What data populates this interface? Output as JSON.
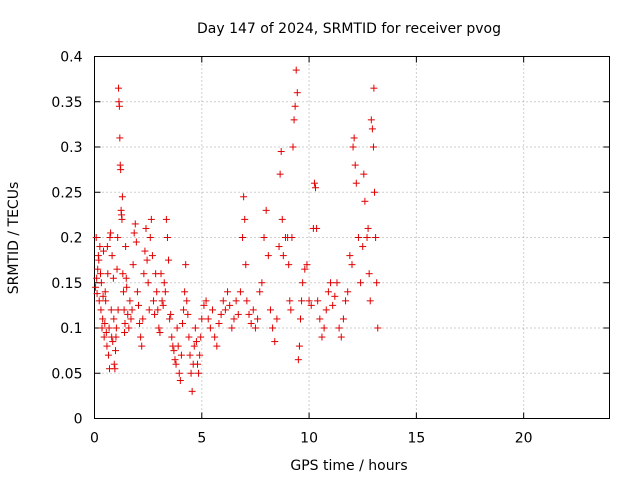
{
  "chart_data": {
    "type": "scatter",
    "title": "Day 147 of 2024, SRMTID for receiver pvog",
    "xlabel": "GPS time / hours",
    "ylabel": "SRMTID / TECUs",
    "xlim": [
      0,
      24
    ],
    "ylim": [
      0,
      0.4
    ],
    "xticks": [
      0,
      5,
      10,
      15,
      20
    ],
    "yticks": [
      0,
      0.05,
      0.1,
      0.15,
      0.2,
      0.25,
      0.3,
      0.35,
      0.4
    ],
    "xtick_labels": [
      "0",
      "5",
      "10",
      "15",
      "20"
    ],
    "ytick_labels": [
      "0",
      "0.05",
      "0.1",
      "0.15",
      "0.2",
      "0.25",
      "0.3",
      "0.35",
      "0.4"
    ],
    "grid": true,
    "marker": "+",
    "color": "#e00000",
    "series": [
      {
        "name": "SRMTID",
        "points": [
          [
            0.05,
            0.145
          ],
          [
            0.08,
            0.2
          ],
          [
            0.1,
            0.155
          ],
          [
            0.12,
            0.138
          ],
          [
            0.15,
            0.165
          ],
          [
            0.18,
            0.18
          ],
          [
            0.2,
            0.175
          ],
          [
            0.22,
            0.13
          ],
          [
            0.25,
            0.19
          ],
          [
            0.28,
            0.16
          ],
          [
            0.3,
            0.12
          ],
          [
            0.32,
            0.15
          ],
          [
            0.35,
            0.1
          ],
          [
            0.38,
            0.11
          ],
          [
            0.4,
            0.135
          ],
          [
            0.42,
            0.185
          ],
          [
            0.45,
            0.09
          ],
          [
            0.48,
            0.105
          ],
          [
            0.5,
            0.14
          ],
          [
            0.52,
            0.13
          ],
          [
            0.55,
            0.095
          ],
          [
            0.58,
            0.08
          ],
          [
            0.6,
            0.19
          ],
          [
            0.62,
            0.16
          ],
          [
            0.65,
            0.07
          ],
          [
            0.68,
            0.1
          ],
          [
            0.7,
            0.055
          ],
          [
            0.72,
            0.2
          ],
          [
            0.75,
            0.205
          ],
          [
            0.78,
            0.12
          ],
          [
            0.8,
            0.09
          ],
          [
            0.82,
            0.18
          ],
          [
            0.85,
            0.085
          ],
          [
            0.88,
            0.155
          ],
          [
            0.9,
            0.11
          ],
          [
            0.92,
            0.06
          ],
          [
            0.95,
            0.055
          ],
          [
            0.98,
            0.075
          ],
          [
            1.0,
            0.09
          ],
          [
            1.02,
            0.1
          ],
          [
            1.05,
            0.165
          ],
          [
            1.08,
            0.2
          ],
          [
            1.1,
            0.12
          ],
          [
            1.12,
            0.365
          ],
          [
            1.14,
            0.35
          ],
          [
            1.16,
            0.345
          ],
          [
            1.18,
            0.31
          ],
          [
            1.2,
            0.28
          ],
          [
            1.22,
            0.275
          ],
          [
            1.24,
            0.23
          ],
          [
            1.26,
            0.225
          ],
          [
            1.28,
            0.22
          ],
          [
            1.3,
            0.245
          ],
          [
            1.32,
            0.16
          ],
          [
            1.35,
            0.14
          ],
          [
            1.38,
            0.12
          ],
          [
            1.4,
            0.095
          ],
          [
            1.42,
            0.105
          ],
          [
            1.45,
            0.19
          ],
          [
            1.48,
            0.155
          ],
          [
            1.5,
            0.145
          ],
          [
            1.55,
            0.115
          ],
          [
            1.6,
            0.1
          ],
          [
            1.65,
            0.13
          ],
          [
            1.7,
            0.11
          ],
          [
            1.75,
            0.12
          ],
          [
            1.8,
            0.17
          ],
          [
            1.85,
            0.205
          ],
          [
            1.9,
            0.215
          ],
          [
            1.95,
            0.195
          ],
          [
            2.0,
            0.14
          ],
          [
            2.05,
            0.125
          ],
          [
            2.1,
            0.105
          ],
          [
            2.15,
            0.09
          ],
          [
            2.2,
            0.08
          ],
          [
            2.25,
            0.11
          ],
          [
            2.3,
            0.16
          ],
          [
            2.35,
            0.185
          ],
          [
            2.4,
            0.21
          ],
          [
            2.45,
            0.175
          ],
          [
            2.5,
            0.15
          ],
          [
            2.55,
            0.12
          ],
          [
            2.6,
            0.2
          ],
          [
            2.65,
            0.22
          ],
          [
            2.7,
            0.18
          ],
          [
            2.75,
            0.13
          ],
          [
            2.8,
            0.115
          ],
          [
            2.85,
            0.16
          ],
          [
            2.9,
            0.14
          ],
          [
            2.95,
            0.12
          ],
          [
            3.0,
            0.1
          ],
          [
            3.05,
            0.095
          ],
          [
            3.1,
            0.16
          ],
          [
            3.15,
            0.13
          ],
          [
            3.2,
            0.125
          ],
          [
            3.25,
            0.15
          ],
          [
            3.3,
            0.14
          ],
          [
            3.35,
            0.22
          ],
          [
            3.4,
            0.2
          ],
          [
            3.45,
            0.175
          ],
          [
            3.5,
            0.11
          ],
          [
            3.55,
            0.115
          ],
          [
            3.6,
            0.09
          ],
          [
            3.65,
            0.08
          ],
          [
            3.7,
            0.075
          ],
          [
            3.75,
            0.065
          ],
          [
            3.8,
            0.06
          ],
          [
            3.85,
            0.1
          ],
          [
            3.9,
            0.08
          ],
          [
            3.95,
            0.05
          ],
          [
            4.0,
            0.042
          ],
          [
            4.05,
            0.07
          ],
          [
            4.1,
            0.105
          ],
          [
            4.15,
            0.12
          ],
          [
            4.2,
            0.14
          ],
          [
            4.25,
            0.17
          ],
          [
            4.3,
            0.13
          ],
          [
            4.35,
            0.115
          ],
          [
            4.4,
            0.09
          ],
          [
            4.45,
            0.07
          ],
          [
            4.5,
            0.05
          ],
          [
            4.55,
            0.03
          ],
          [
            4.6,
            0.06
          ],
          [
            4.65,
            0.08
          ],
          [
            4.7,
            0.1
          ],
          [
            4.75,
            0.085
          ],
          [
            4.8,
            0.06
          ],
          [
            4.85,
            0.05
          ],
          [
            4.9,
            0.07
          ],
          [
            4.95,
            0.09
          ],
          [
            5.0,
            0.11
          ],
          [
            5.1,
            0.125
          ],
          [
            5.2,
            0.13
          ],
          [
            5.3,
            0.11
          ],
          [
            5.4,
            0.1
          ],
          [
            5.5,
            0.12
          ],
          [
            5.6,
            0.09
          ],
          [
            5.7,
            0.08
          ],
          [
            5.8,
            0.105
          ],
          [
            5.9,
            0.115
          ],
          [
            6.0,
            0.13
          ],
          [
            6.1,
            0.12
          ],
          [
            6.2,
            0.14
          ],
          [
            6.3,
            0.125
          ],
          [
            6.4,
            0.1
          ],
          [
            6.5,
            0.11
          ],
          [
            6.6,
            0.13
          ],
          [
            6.7,
            0.115
          ],
          [
            6.8,
            0.14
          ],
          [
            6.9,
            0.2
          ],
          [
            6.95,
            0.245
          ],
          [
            7.0,
            0.22
          ],
          [
            7.05,
            0.17
          ],
          [
            7.1,
            0.13
          ],
          [
            7.2,
            0.115
          ],
          [
            7.3,
            0.105
          ],
          [
            7.4,
            0.12
          ],
          [
            7.5,
            0.1
          ],
          [
            7.6,
            0.11
          ],
          [
            7.7,
            0.14
          ],
          [
            7.8,
            0.15
          ],
          [
            7.9,
            0.2
          ],
          [
            8.0,
            0.23
          ],
          [
            8.1,
            0.18
          ],
          [
            8.2,
            0.12
          ],
          [
            8.3,
            0.1
          ],
          [
            8.4,
            0.085
          ],
          [
            8.5,
            0.11
          ],
          [
            8.6,
            0.19
          ],
          [
            8.65,
            0.27
          ],
          [
            8.7,
            0.295
          ],
          [
            8.75,
            0.22
          ],
          [
            8.8,
            0.18
          ],
          [
            8.9,
            0.2
          ],
          [
            9.0,
            0.2
          ],
          [
            9.05,
            0.17
          ],
          [
            9.1,
            0.13
          ],
          [
            9.15,
            0.12
          ],
          [
            9.2,
            0.2
          ],
          [
            9.25,
            0.3
          ],
          [
            9.3,
            0.33
          ],
          [
            9.35,
            0.345
          ],
          [
            9.4,
            0.385
          ],
          [
            9.45,
            0.36
          ],
          [
            9.5,
            0.065
          ],
          [
            9.55,
            0.08
          ],
          [
            9.6,
            0.11
          ],
          [
            9.65,
            0.13
          ],
          [
            9.7,
            0.15
          ],
          [
            9.8,
            0.165
          ],
          [
            9.9,
            0.17
          ],
          [
            10.0,
            0.13
          ],
          [
            10.1,
            0.125
          ],
          [
            10.2,
            0.21
          ],
          [
            10.25,
            0.26
          ],
          [
            10.3,
            0.255
          ],
          [
            10.35,
            0.21
          ],
          [
            10.4,
            0.13
          ],
          [
            10.5,
            0.11
          ],
          [
            10.6,
            0.09
          ],
          [
            10.7,
            0.1
          ],
          [
            10.8,
            0.12
          ],
          [
            10.9,
            0.14
          ],
          [
            11.0,
            0.15
          ],
          [
            11.1,
            0.125
          ],
          [
            11.2,
            0.135
          ],
          [
            11.3,
            0.15
          ],
          [
            11.4,
            0.1
          ],
          [
            11.5,
            0.09
          ],
          [
            11.6,
            0.11
          ],
          [
            11.7,
            0.13
          ],
          [
            11.8,
            0.14
          ],
          [
            11.9,
            0.18
          ],
          [
            12.0,
            0.17
          ],
          [
            12.05,
            0.3
          ],
          [
            12.1,
            0.31
          ],
          [
            12.15,
            0.28
          ],
          [
            12.2,
            0.26
          ],
          [
            12.3,
            0.2
          ],
          [
            12.4,
            0.15
          ],
          [
            12.5,
            0.19
          ],
          [
            12.55,
            0.27
          ],
          [
            12.6,
            0.24
          ],
          [
            12.7,
            0.2
          ],
          [
            12.75,
            0.21
          ],
          [
            12.8,
            0.16
          ],
          [
            12.85,
            0.13
          ],
          [
            12.9,
            0.33
          ],
          [
            12.95,
            0.32
          ],
          [
            13.0,
            0.3
          ],
          [
            13.02,
            0.365
          ],
          [
            13.05,
            0.25
          ],
          [
            13.1,
            0.2
          ],
          [
            13.15,
            0.15
          ],
          [
            13.2,
            0.1
          ]
        ]
      }
    ]
  }
}
